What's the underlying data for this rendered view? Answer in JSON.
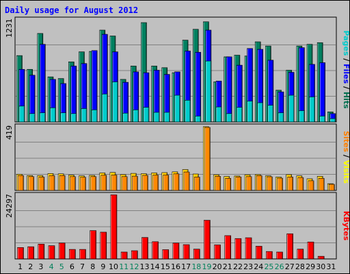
{
  "page": {
    "title": "Daily usage for August 2012"
  },
  "chart_data": {
    "type": "bar",
    "title": "Daily usage for August 2012",
    "categories": [
      "1",
      "2",
      "3",
      "4",
      "5",
      "6",
      "7",
      "8",
      "9",
      "10",
      "11",
      "12",
      "13",
      "14",
      "15",
      "16",
      "17",
      "18",
      "19",
      "20",
      "21",
      "22",
      "23",
      "24",
      "25",
      "26",
      "27",
      "28",
      "29",
      "30",
      "31"
    ],
    "weekend_days": [
      "4",
      "5",
      "11",
      "12",
      "18",
      "19",
      "25",
      "26"
    ],
    "grid": true,
    "panels": [
      {
        "id": "hits",
        "max_label": "1231",
        "ymax": 1231,
        "side_labels": [
          {
            "text": "Pages",
            "color": "#00cccc"
          },
          {
            "text": " / ",
            "color": "#000000"
          },
          {
            "text": "Files",
            "color": "#0000ff"
          },
          {
            "text": " / ",
            "color": "#000000"
          },
          {
            "text": "Hits",
            "color": "#007050"
          }
        ],
        "series": [
          {
            "name": "Hits",
            "color": "#008060",
            "values": [
              795,
              630,
              1060,
              540,
              520,
              720,
              840,
              845,
              1100,
              1030,
              510,
              670,
              1190,
              670,
              650,
              590,
              980,
              1110,
              1200,
              480,
              780,
              800,
              790,
              960,
              910,
              380,
              620,
              910,
              930,
              950,
              120
            ]
          },
          {
            "name": "Files",
            "color": "#0000ff",
            "values": [
              630,
              560,
              930,
              510,
              460,
              670,
              700,
              855,
              1050,
              840,
              475,
              600,
              590,
              620,
              570,
              600,
              850,
              835,
              1100,
              490,
              780,
              680,
              880,
              870,
              740,
              360,
              595,
              890,
              690,
              710,
              100
            ]
          },
          {
            "name": "Pages",
            "color": "#00cccc",
            "values": [
              190,
              100,
              110,
              170,
              110,
              100,
              160,
              145,
              335,
              480,
              105,
              145,
              175,
              115,
              115,
              320,
              260,
              70,
              730,
              180,
              100,
              175,
              250,
              230,
              200,
              110,
              320,
              135,
              300,
              70,
              40
            ]
          }
        ]
      },
      {
        "id": "visits",
        "max_label": "419",
        "ymax": 419,
        "side_labels": [
          {
            "text": "Sites",
            "color": "#ff8000"
          },
          {
            "text": " / ",
            "color": "#000000"
          },
          {
            "text": "Visits",
            "color": "#ffff00"
          }
        ],
        "series": [
          {
            "name": "Visits",
            "color": "#ffcc00",
            "values": [
              105,
              97,
              97,
              110,
              108,
              100,
              95,
              98,
              114,
              117,
              103,
              111,
              109,
              114,
              116,
              121,
              136,
              107,
              415,
              102,
              91,
              94,
              102,
              103,
              95,
              87,
              103,
              95,
              76,
              92,
              44
            ]
          },
          {
            "name": "Sites",
            "color": "#ff8800",
            "values": [
              97,
              90,
              87,
              96,
              97,
              90,
              86,
              90,
              99,
              100,
              90,
              93,
              98,
              100,
              100,
              108,
              120,
              87,
              410,
              92,
              79,
              88,
              90,
              96,
              89,
              80,
              87,
              84,
              63,
              79,
              40
            ]
          }
        ]
      },
      {
        "id": "kbytes",
        "max_label": "24297",
        "ymax": 24297,
        "side_labels": [
          {
            "text": "KBytes",
            "color": "#ff0000"
          }
        ],
        "series": [
          {
            "name": "KBytes",
            "color": "#ff0000",
            "values": [
              4300,
              4600,
              5600,
              5000,
              6000,
              3600,
              3600,
              10700,
              10100,
              24200,
              2600,
              3100,
              8100,
              6500,
              3500,
              6000,
              5400,
              3700,
              14600,
              5300,
              8800,
              7700,
              8000,
              4800,
              2800,
              2600,
              9500,
              3700,
              6400,
              1000,
              null
            ]
          }
        ]
      }
    ]
  }
}
